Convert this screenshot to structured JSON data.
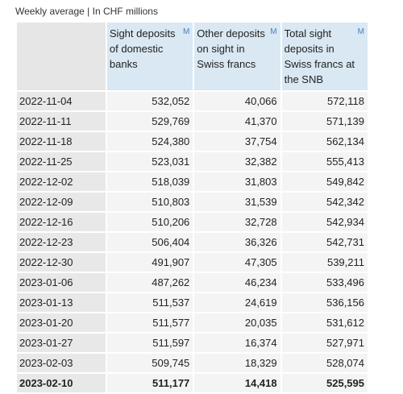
{
  "caption": "Weekly average | In CHF millions",
  "marker": "M",
  "chart_data": {
    "type": "table",
    "columns": [
      "Sight deposits of domestic banks",
      "Other deposits on sight in Swiss francs",
      "Total sight deposits in Swiss francs at the SNB"
    ],
    "rows": [
      {
        "date": "2022-11-04",
        "values": [
          "532,052",
          "40,066",
          "572,118"
        ]
      },
      {
        "date": "2022-11-11",
        "values": [
          "529,769",
          "41,370",
          "571,139"
        ]
      },
      {
        "date": "2022-11-18",
        "values": [
          "524,380",
          "37,754",
          "562,134"
        ]
      },
      {
        "date": "2022-11-25",
        "values": [
          "523,031",
          "32,382",
          "555,413"
        ]
      },
      {
        "date": "2022-12-02",
        "values": [
          "518,039",
          "31,803",
          "549,842"
        ]
      },
      {
        "date": "2022-12-09",
        "values": [
          "510,803",
          "31,539",
          "542,342"
        ]
      },
      {
        "date": "2022-12-16",
        "values": [
          "510,206",
          "32,728",
          "542,934"
        ]
      },
      {
        "date": "2022-12-23",
        "values": [
          "506,404",
          "36,326",
          "542,731"
        ]
      },
      {
        "date": "2022-12-30",
        "values": [
          "491,907",
          "47,305",
          "539,211"
        ]
      },
      {
        "date": "2023-01-06",
        "values": [
          "487,262",
          "46,234",
          "533,496"
        ]
      },
      {
        "date": "2023-01-13",
        "values": [
          "511,537",
          "24,619",
          "536,156"
        ]
      },
      {
        "date": "2023-01-20",
        "values": [
          "511,577",
          "20,035",
          "531,612"
        ]
      },
      {
        "date": "2023-01-27",
        "values": [
          "511,597",
          "16,374",
          "527,971"
        ]
      },
      {
        "date": "2023-02-03",
        "values": [
          "509,745",
          "18,329",
          "528,074"
        ]
      },
      {
        "date": "2023-02-10",
        "values": [
          "511,177",
          "14,418",
          "525,595"
        ]
      }
    ]
  }
}
